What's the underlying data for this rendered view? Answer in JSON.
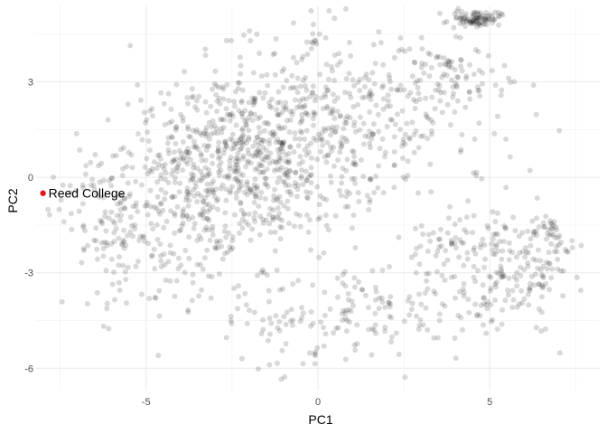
{
  "chart_data": {
    "type": "scatter",
    "title": "",
    "xlabel": "PC1",
    "ylabel": "PC2",
    "xlim": [
      -8.2,
      8.2
    ],
    "ylim": [
      -6.7,
      5.4
    ],
    "x_ticks": [
      -5,
      0,
      5
    ],
    "x_tick_labels": [
      "-5",
      "0",
      "5"
    ],
    "y_ticks": [
      -6,
      -3,
      0,
      3
    ],
    "y_tick_labels": [
      "-6",
      "-3",
      "0",
      "3"
    ],
    "grid": true,
    "point_color": "#000000",
    "point_opacity": 0.15,
    "clusters": [
      {
        "cx": -2.0,
        "cy": 0.5,
        "sx": 2.4,
        "sy": 1.5,
        "n": 1050,
        "rot": 0.55
      },
      {
        "cx": -5.5,
        "cy": -1.5,
        "sx": 1.2,
        "sy": 1.0,
        "n": 120,
        "rot": 0.3
      },
      {
        "cx": 2.8,
        "cy": 1.8,
        "sx": 1.5,
        "sy": 1.6,
        "n": 140,
        "rot": 0.2
      },
      {
        "cx": 3.9,
        "cy": 3.1,
        "sx": 0.8,
        "sy": 0.5,
        "n": 60,
        "rot": 0.0
      },
      {
        "cx": 4.6,
        "cy": 5.0,
        "sx": 0.35,
        "sy": 0.12,
        "n": 90,
        "rot": 0.0
      },
      {
        "cx": 3.6,
        "cy": -2.3,
        "sx": 0.9,
        "sy": 0.6,
        "n": 70,
        "rot": 0.3
      },
      {
        "cx": 5.8,
        "cy": -3.0,
        "sx": 0.9,
        "sy": 0.8,
        "n": 170,
        "rot": 0.6
      },
      {
        "cx": 6.6,
        "cy": -1.6,
        "sx": 0.3,
        "sy": 0.3,
        "n": 25,
        "rot": 0.0
      },
      {
        "cx": 1.8,
        "cy": -4.3,
        "sx": 1.8,
        "sy": 0.8,
        "n": 120,
        "rot": 0.1
      },
      {
        "cx": -1.0,
        "cy": -4.4,
        "sx": 1.2,
        "sy": 0.6,
        "n": 40,
        "rot": 0.0
      }
    ],
    "highlight": {
      "x": -8.0,
      "y": -0.5,
      "label": "Reed College",
      "color": "#e31a1c"
    }
  }
}
